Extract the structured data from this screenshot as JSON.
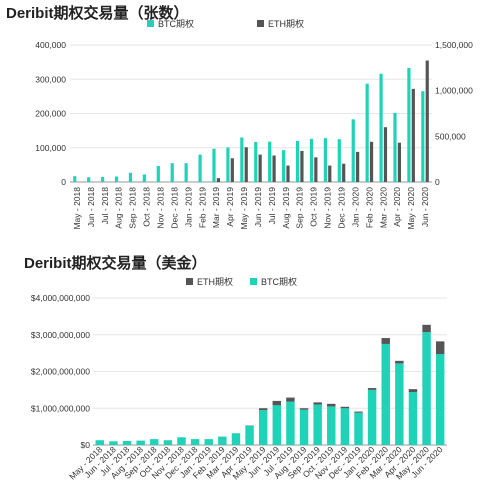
{
  "titles": [
    "Deribit期权交易量（张数）",
    "Deribit期权交易量（美金）"
  ],
  "colors": {
    "btc": "#1fd3b9",
    "eth": "#555555",
    "grid": "#e6e6e6",
    "axis": "#999999"
  },
  "chart_data": [
    {
      "type": "bar",
      "title": "Deribit期权交易量（张数）",
      "categories": [
        "May - 2018",
        "Jun - 2018",
        "Jul - 2018",
        "Aug - 2018",
        "Sep - 2018",
        "Oct - 2018",
        "Nov - 2018",
        "Dec - 2018",
        "Jan - 2019",
        "Feb - 2019",
        "Mar - 2019",
        "Apr - 2019",
        "May - 2019",
        "Jun - 2019",
        "Jul - 2019",
        "Aug - 2019",
        "Sep - 2019",
        "Oct - 2019",
        "Nov - 2019",
        "Dec - 2019",
        "Jan - 2020",
        "Feb - 2020",
        "Mar - 2020",
        "Apr - 2020",
        "May - 2020",
        "Jun - 2020"
      ],
      "legend": [
        "BTC期权",
        "ETH期权"
      ],
      "legend_position": "top",
      "y_left": {
        "ticks": [
          "0",
          "100,000",
          "200,000",
          "300,000",
          "400,000"
        ],
        "range": [
          0,
          400000
        ]
      },
      "y_right": {
        "ticks": [
          "0",
          "500,000",
          "1,000,000",
          "1,500,000"
        ],
        "range": [
          0,
          1500000
        ]
      },
      "series": [
        {
          "name": "BTC期权",
          "axis": "left",
          "values": [
            17000,
            14000,
            15000,
            16000,
            27000,
            22000,
            47000,
            55000,
            55000,
            80000,
            97000,
            101000,
            130000,
            117000,
            118000,
            93000,
            120000,
            126000,
            128000,
            125000,
            183000,
            287000,
            316000,
            202000,
            333000,
            265000
          ]
        },
        {
          "name": "ETH期权",
          "axis": "right",
          "values": [
            0,
            0,
            0,
            0,
            0,
            0,
            0,
            0,
            0,
            0,
            42000,
            260000,
            380000,
            300000,
            290000,
            180000,
            340000,
            270000,
            180000,
            200000,
            330000,
            440000,
            600000,
            430000,
            1020000,
            1330000
          ]
        }
      ]
    },
    {
      "type": "bar",
      "stacked": true,
      "title": "Deribit期权交易量（美金）",
      "categories": [
        "May - 2018",
        "Jun - 2018",
        "Jul - 2018",
        "Aug - 2018",
        "Sep - 2018",
        "Oct - 2018",
        "Nov - 2018",
        "Dec - 2018",
        "Jan - 2019",
        "Feb - 2019",
        "Mar - 2019",
        "Apr - 2019",
        "May - 2019",
        "Jun - 2019",
        "Jul - 2019",
        "Aug - 2019",
        "Sep - 2019",
        "Oct - 2019",
        "Nov - 2019",
        "Dec - 2019",
        "Jan - 2020",
        "Feb - 2020",
        "Mar - 2020",
        "Apr - 2020",
        "May - 2020",
        "Jun - 2020"
      ],
      "legend": [
        "ETH期权",
        "BTC期权"
      ],
      "legend_position": "top",
      "y": {
        "ticks": [
          "$0",
          "$1,000,000,000",
          "$2,000,000,000",
          "$3,000,000,000",
          "$4,000,000,000"
        ],
        "range": [
          0,
          4000000000
        ]
      },
      "series": [
        {
          "name": "BTC期权",
          "values": [
            130000000,
            100000000,
            110000000,
            120000000,
            160000000,
            130000000,
            210000000,
            160000000,
            160000000,
            230000000,
            320000000,
            520000000,
            950000000,
            1080000000,
            1180000000,
            960000000,
            1100000000,
            1050000000,
            1000000000,
            880000000,
            1500000000,
            2750000000,
            2220000000,
            1440000000,
            3070000000,
            2470000000
          ]
        },
        {
          "name": "ETH期权",
          "values": [
            0,
            0,
            0,
            0,
            0,
            0,
            0,
            0,
            0,
            0,
            0,
            10000000,
            50000000,
            120000000,
            110000000,
            40000000,
            60000000,
            70000000,
            40000000,
            30000000,
            50000000,
            160000000,
            70000000,
            80000000,
            200000000,
            350000000
          ]
        }
      ]
    }
  ]
}
